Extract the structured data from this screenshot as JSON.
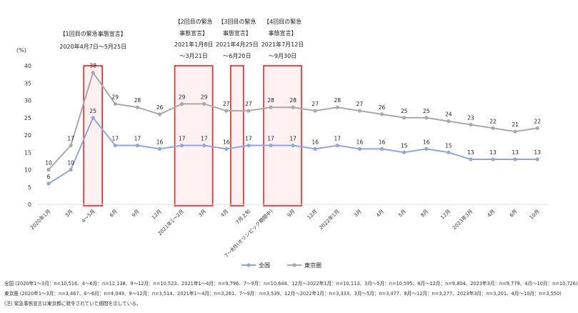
{
  "chart_data": {
    "type": "line",
    "ylabel": "(%)",
    "ylim": [
      0,
      40
    ],
    "yticks": [
      0,
      5,
      10,
      15,
      20,
      25,
      30,
      35,
      40
    ],
    "grid": false,
    "legend_placement": "bottom-center",
    "categories": [
      "2020年1月",
      "3月",
      "4〜5月",
      "6月",
      "9月",
      "12月",
      "2021年1〜2月",
      "3月",
      "4月",
      "7月上旬",
      "7〜8月(オリンピック期間中)",
      "9月",
      "12月",
      "2022年1月",
      "3月",
      "4月",
      "5月",
      "8月",
      "12月",
      "2023年3月",
      "4月",
      "6月",
      "10月"
    ],
    "series": [
      {
        "name": "全国",
        "color": "#8fa8dc",
        "values": [
          6,
          10,
          25,
          17,
          17,
          16,
          17,
          17,
          16,
          17,
          17,
          17,
          16,
          17,
          16,
          16,
          15,
          16,
          15,
          13,
          13,
          13,
          13
        ]
      },
      {
        "name": "東京圏",
        "color": "#a9a9a9",
        "values": [
          10,
          17,
          38,
          29,
          28,
          26,
          29,
          29,
          27,
          27,
          28,
          28,
          27,
          28,
          27,
          26,
          25,
          25,
          24,
          23,
          22,
          21,
          22
        ]
      }
    ],
    "highlight_periods": [
      {
        "from": 2,
        "to": 2,
        "lines": [
          "【1回目の緊急事態宣言】",
          "2020年4月7日〜5月25日"
        ]
      },
      {
        "from": 6,
        "to": 7,
        "lines": [
          "【2回目の緊急",
          "事態宣言】",
          "2021年1月8日",
          "〜3月21日"
        ]
      },
      {
        "from": 9,
        "to": 9,
        "lines": [
          "【3回目の緊急",
          "事態宣言】",
          "2021年4月25日",
          "〜6月20日"
        ]
      },
      {
        "from": 10,
        "to": 11,
        "lines": [
          "【4回目の緊急",
          "事態宣言】",
          "2021年7月12日",
          "〜9月30日"
        ]
      }
    ]
  },
  "footnotes": [
    "全国 (2020年1〜3月：n=10,516、4〜6月：n=12,138、9〜12月：n=10,523、2021年1〜4月：n=9,796、7〜9月：n=10,644、12月〜2022年1月：n=10,113、3月〜5月：n=10,595、8月〜12月：n=9,804、2023年3月：n=9,779、4月〜10月：n=10,726)",
    "東京圏 (2020年1〜3月：n=3,467、4〜6月：n=4,049、9〜12月：n=3,514、2021年1〜4月：n=3,261、7〜9月：n=3,539、12月〜2022年1月：n=3,333、3月〜5月：n=3,477、8月〜12月：n=3,277、2023年3月：n=3,201、4月〜10月：n=3,550)",
    "(注) 緊急事態宣言は東京都に発令されていた期間を示している。"
  ]
}
